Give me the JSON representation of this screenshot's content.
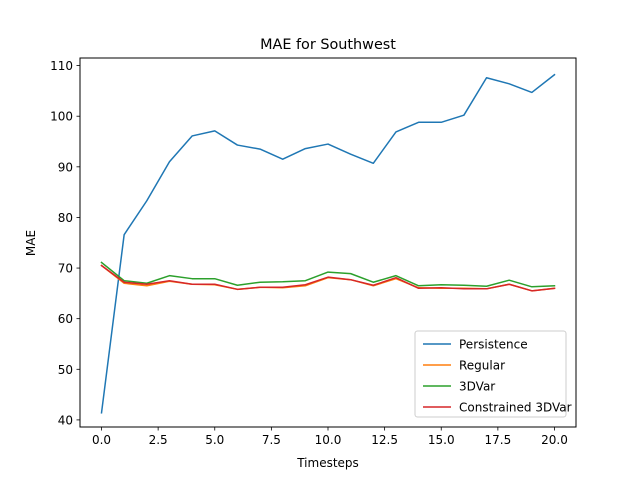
{
  "chart_data": {
    "type": "line",
    "title": "MAE for Southwest",
    "xlabel": "Timesteps",
    "ylabel": "MAE",
    "xlim": [
      -0.95,
      20.95
    ],
    "ylim": [
      38.6,
      111.5
    ],
    "x_ticks": [
      0.0,
      2.5,
      5.0,
      7.5,
      10.0,
      12.5,
      15.0,
      17.5,
      20.0
    ],
    "x_tick_labels": [
      "0.0",
      "2.5",
      "5.0",
      "7.5",
      "10.0",
      "12.5",
      "15.0",
      "17.5",
      "20.0"
    ],
    "y_ticks": [
      40,
      50,
      60,
      70,
      80,
      90,
      100,
      110
    ],
    "y_tick_labels": [
      "40",
      "50",
      "60",
      "70",
      "80",
      "90",
      "100",
      "110"
    ],
    "grid": false,
    "legend_position": "lower-right",
    "x": [
      0,
      1,
      2,
      3,
      4,
      5,
      6,
      7,
      8,
      9,
      10,
      11,
      12,
      13,
      14,
      15,
      16,
      17,
      18,
      19,
      20
    ],
    "series": [
      {
        "name": "Persistence",
        "color": "#1f77b4",
        "values": [
          41.4,
          76.6,
          83.3,
          91.0,
          96.1,
          97.1,
          94.3,
          93.5,
          91.5,
          93.6,
          94.5,
          92.5,
          90.7,
          96.9,
          98.8,
          98.8,
          100.2,
          107.6,
          106.4,
          104.7,
          108.2
        ]
      },
      {
        "name": "Regular",
        "color": "#ff7f0e",
        "values": [
          70.5,
          67.0,
          66.5,
          67.4,
          66.8,
          66.7,
          65.8,
          66.2,
          66.1,
          66.5,
          68.1,
          67.7,
          66.5,
          67.9,
          66.1,
          66.0,
          66.0,
          65.9,
          66.8,
          65.5,
          66.0
        ]
      },
      {
        "name": "3DVar",
        "color": "#2ca02c",
        "values": [
          71.1,
          67.5,
          67.0,
          68.5,
          67.9,
          67.9,
          66.6,
          67.2,
          67.3,
          67.5,
          69.2,
          68.9,
          67.2,
          68.5,
          66.5,
          66.7,
          66.6,
          66.4,
          67.6,
          66.3,
          66.5
        ]
      },
      {
        "name": "Constrained 3DVar",
        "color": "#d62728",
        "values": [
          70.5,
          67.2,
          66.8,
          67.5,
          66.8,
          66.8,
          65.8,
          66.2,
          66.2,
          66.7,
          68.2,
          67.7,
          66.6,
          68.1,
          66.0,
          66.1,
          65.9,
          65.9,
          66.8,
          65.5,
          66.0
        ]
      }
    ]
  }
}
